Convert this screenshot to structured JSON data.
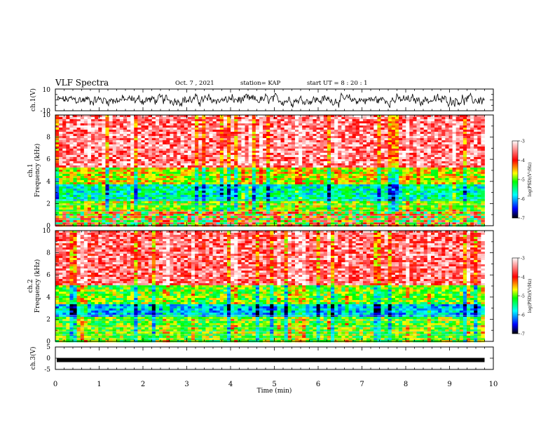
{
  "header": {
    "title": "VLF Spectra",
    "date": "Oct. 7 , 2021",
    "station": "station= KAP",
    "start": "start  UT =   8 : 20 : 1"
  },
  "chart_data": [
    {
      "type": "line",
      "name": "ch1-waveform",
      "ylabel": "ch.1(V)",
      "ylim": [
        -10,
        10
      ],
      "ytick_labels": [
        "10",
        "-10"
      ],
      "xlim": [
        0,
        10
      ],
      "style": "dense noisy waveform, amplitude roughly -7 to 7 V, fluctuating around 0"
    },
    {
      "type": "heatmap",
      "name": "ch1-spectrogram",
      "ylabel": "ch.1\nFrequency (kHz)",
      "ylim": [
        0,
        10
      ],
      "ytick_labels": [
        "0",
        "2",
        "4",
        "6",
        "8",
        "10"
      ],
      "xlim": [
        0,
        10
      ],
      "x_end_min": 9.8,
      "bands_kHz": [
        {
          "from": 0,
          "to": 1.2,
          "level": "mixed"
        },
        {
          "from": 1.2,
          "to": 2.2,
          "level": -4.9
        },
        {
          "from": 2.2,
          "to": 3.8,
          "level": -5.6
        },
        {
          "from": 3.8,
          "to": 5.2,
          "level": -4.7
        },
        {
          "from": 5.2,
          "to": 10,
          "level": -3.5
        }
      ],
      "colorbar": {
        "label": "log(PSD)(V²/Hz)",
        "min": -7,
        "max": -3,
        "ticks": [
          "-3",
          "-4",
          "-5",
          "-6",
          "-7"
        ],
        "colors": [
          "#000000",
          "#0000ff",
          "#00ffff",
          "#00ff00",
          "#ffff00",
          "#ff0000",
          "#ffffff"
        ]
      }
    },
    {
      "type": "heatmap",
      "name": "ch2-spectrogram",
      "ylabel": "ch.2\nFrequency (kHz)",
      "ylim": [
        0,
        10
      ],
      "ytick_labels": [
        "0",
        "2",
        "4",
        "6",
        "8",
        "10"
      ],
      "xlim": [
        0,
        10
      ],
      "x_end_min": 9.8,
      "bands_kHz": [
        {
          "from": 0,
          "to": 2.2,
          "level": -5.0
        },
        {
          "from": 2.2,
          "to": 3.4,
          "level": -5.9
        },
        {
          "from": 3.4,
          "to": 5.0,
          "level": -5.0
        },
        {
          "from": 5.0,
          "to": 10,
          "level": -3.6
        }
      ],
      "colorbar": {
        "label": "log(PSD)(V²/Hz)",
        "min": -7,
        "max": -3,
        "ticks": [
          "-3",
          "-4",
          "-5",
          "-6",
          "-7"
        ],
        "colors": [
          "#000000",
          "#0000ff",
          "#00ffff",
          "#00ff00",
          "#ffff00",
          "#ff0000",
          "#ffffff"
        ]
      }
    },
    {
      "type": "line",
      "name": "ch3-waveform",
      "ylabel": "ch.3(V)",
      "ylim": [
        -5,
        5
      ],
      "ytick_labels": [
        "5",
        "0",
        "-5"
      ],
      "xlim": [
        0,
        10
      ],
      "xlabel": "Time  (min)",
      "xticks": [
        "0",
        "1",
        "2",
        "3",
        "4",
        "5",
        "6",
        "7",
        "8",
        "9",
        "10"
      ],
      "style": "thick flat trace near -0.8 V"
    }
  ]
}
